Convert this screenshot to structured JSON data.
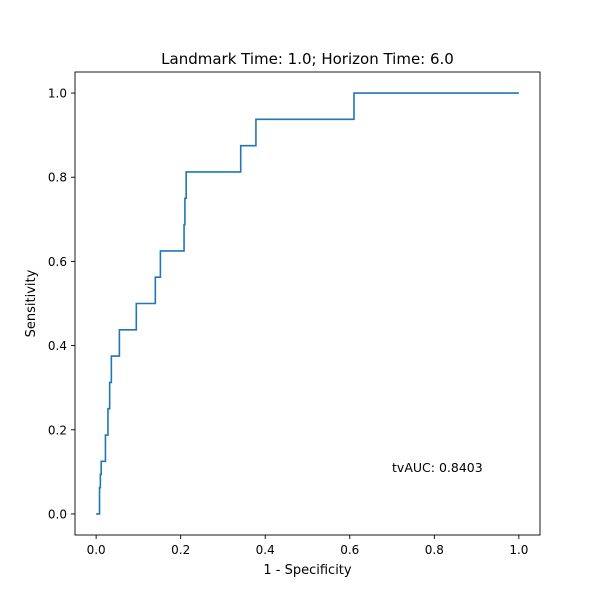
{
  "chart_data": {
    "type": "line",
    "title": "Landmark Time: 1.0; Horizon Time: 6.0",
    "xlabel": "1 - Specificity",
    "ylabel": "Sensitivity",
    "xlim": [
      -0.05,
      1.05
    ],
    "ylim": [
      -0.05,
      1.05
    ],
    "xticks": [
      0.0,
      0.2,
      0.4,
      0.6,
      0.8,
      1.0
    ],
    "xtick_labels": [
      "0.0",
      "0.2",
      "0.4",
      "0.6",
      "0.8",
      "1.0"
    ],
    "yticks": [
      0.0,
      0.2,
      0.4,
      0.6,
      0.8,
      1.0
    ],
    "ytick_labels": [
      "0.0",
      "0.2",
      "0.4",
      "0.6",
      "0.8",
      "1.0"
    ],
    "grid": false,
    "annotation": {
      "text": "tvAUC: 0.8403",
      "x": 0.7,
      "y": 0.1
    },
    "series": [
      {
        "color": "#1f77b4",
        "x": [
          0.0,
          0.008,
          0.008,
          0.01,
          0.01,
          0.012,
          0.012,
          0.022,
          0.022,
          0.028,
          0.028,
          0.032,
          0.032,
          0.036,
          0.036,
          0.044,
          0.044,
          0.055,
          0.055,
          0.095,
          0.095,
          0.14,
          0.14,
          0.152,
          0.152,
          0.208,
          0.208,
          0.21,
          0.21,
          0.213,
          0.213,
          0.342,
          0.342,
          0.378,
          0.378,
          0.61,
          0.61,
          1.0
        ],
        "y": [
          0.0,
          0.0,
          0.0625,
          0.0625,
          0.0938,
          0.0938,
          0.125,
          0.125,
          0.1875,
          0.1875,
          0.25,
          0.25,
          0.3125,
          0.3125,
          0.375,
          0.375,
          0.375,
          0.375,
          0.4375,
          0.4375,
          0.5,
          0.5,
          0.5625,
          0.5625,
          0.625,
          0.625,
          0.6875,
          0.6875,
          0.75,
          0.75,
          0.8125,
          0.8125,
          0.875,
          0.875,
          0.9375,
          0.9375,
          1.0,
          1.0
        ]
      }
    ]
  }
}
